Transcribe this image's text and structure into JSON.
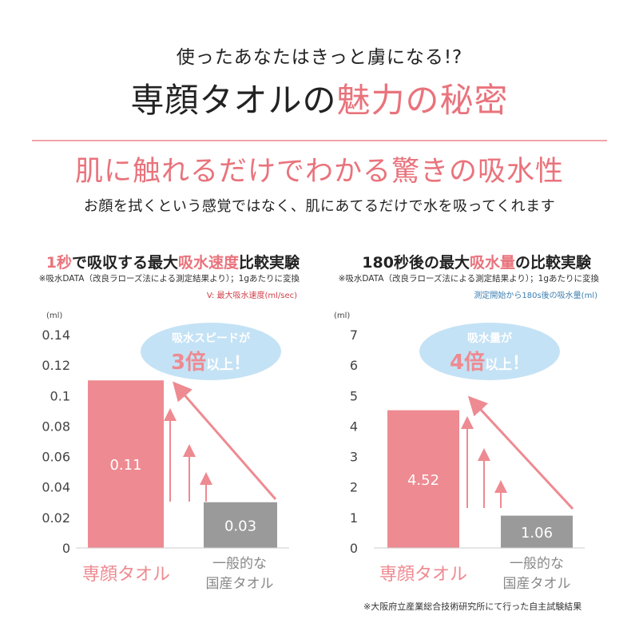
{
  "header": {
    "lead": "使ったあなたはきっと虜になる!?",
    "title_black": "専顔タオルの",
    "title_pink": "魅力の秘密",
    "subtitle": "肌に触れるだけでわかる驚きの吸水性",
    "body": "お顔を拭くという感覚ではなく、肌にあてるだけで水を吸ってくれます"
  },
  "colors": {
    "pink": "#ee8a91",
    "gray": "#9a9a9a",
    "bubble": "#c4e2f5",
    "axis_text": "#444444",
    "note_blue": "#3c7fb0",
    "note_red": "#d0404a"
  },
  "footnote": "※大阪府立産業総合技術研究所にて行った自主試験結果",
  "chart_data": [
    {
      "type": "bar",
      "title_parts": [
        "1秒",
        "で吸収する最大",
        "吸水速度",
        "比較実験"
      ],
      "note": "※吸水DATA（改良ラローズ法による測定結果より）；1gあたりに変換",
      "legend": "V: 最大吸水速度(ml/sec)",
      "ylabel": "(ml)",
      "ylim": [
        0,
        0.14
      ],
      "yticks": [
        "0",
        "0.02",
        "0.04",
        "0.06",
        "0.08",
        "0.1",
        "0.12",
        "0.14"
      ],
      "categories": [
        "専顔タオル",
        "一般的な\n国産タオル"
      ],
      "values": [
        0.11,
        0.03
      ],
      "value_labels": [
        "0.11",
        "0.03"
      ],
      "bubble": {
        "line1": "吸水スピードが",
        "big": "3倍",
        "small": "以上",
        "mark": "！"
      }
    },
    {
      "type": "bar",
      "title_parts": [
        "180秒後の最大",
        "吸水量",
        "の比較実験"
      ],
      "note": "※吸水DATA（改良ラローズ法による測定結果より）；1gあたりに変換",
      "legend": "測定開始から180s後の吸水量(ml)",
      "ylabel": "(ml)",
      "ylim": [
        0,
        7
      ],
      "yticks": [
        "0",
        "1",
        "2",
        "3",
        "4",
        "5",
        "6",
        "7"
      ],
      "categories": [
        "専顔タオル",
        "一般的な\n国産タオル"
      ],
      "values": [
        4.52,
        1.06
      ],
      "value_labels": [
        "4.52",
        "1.06"
      ],
      "bubble": {
        "line1": "吸水量が",
        "big": "4倍",
        "small": "以上",
        "mark": "！"
      }
    }
  ]
}
